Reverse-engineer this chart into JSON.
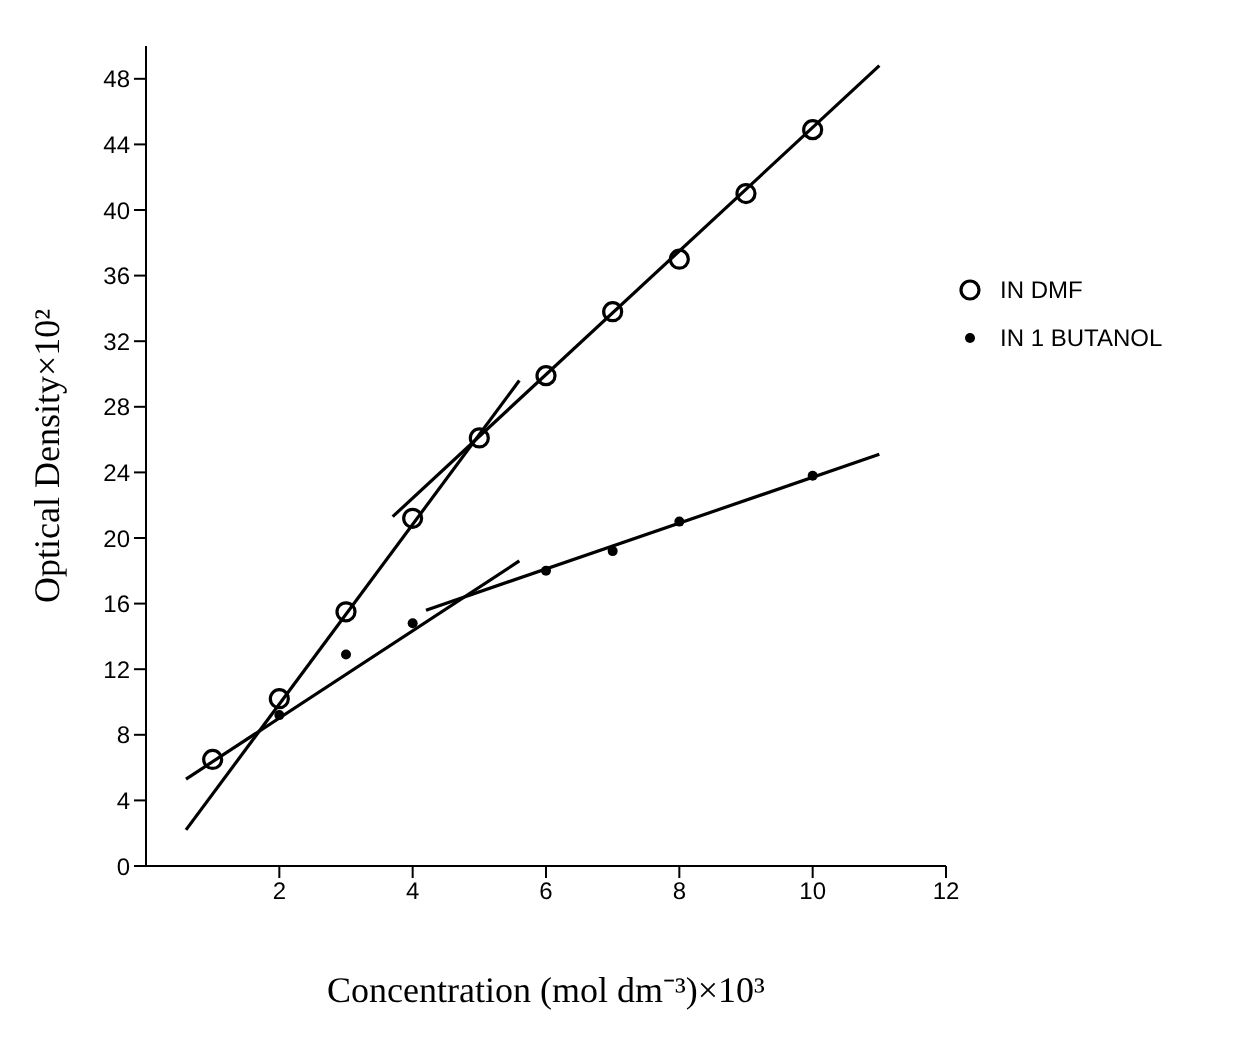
{
  "chart_data": {
    "type": "scatter",
    "xlabel": "Concentration (mol dm⁻³)×10³",
    "ylabel": "Optical Density×10²",
    "xlim": [
      0,
      12
    ],
    "xticks": [
      2,
      4,
      6,
      8,
      10,
      12
    ],
    "ylim": [
      0,
      50
    ],
    "yticks": [
      0,
      4,
      8,
      12,
      16,
      20,
      24,
      28,
      32,
      36,
      40,
      44,
      48
    ],
    "grid": false,
    "legend": "top right",
    "series": [
      {
        "name": "IN DMF",
        "marker": "circle",
        "color": "#000000",
        "x": [
          1,
          2,
          3,
          4,
          5,
          6,
          7,
          8,
          9,
          10
        ],
        "values": [
          6.5,
          10.2,
          15.5,
          21.2,
          26.1,
          29.9,
          33.8,
          37.0,
          41.0,
          44.9
        ]
      },
      {
        "name": "IN 1 BUTANOL",
        "marker": "dot",
        "color": "#000000",
        "x": [
          2,
          3,
          4,
          6,
          7,
          8,
          10
        ],
        "values": [
          9.2,
          12.9,
          14.8,
          18.0,
          19.2,
          21.0,
          23.8
        ]
      },
      {
        "type": "line",
        "marker": "none",
        "color": "#000000",
        "x": [
          0.6,
          5.6
        ],
        "values": [
          2.2,
          29.6
        ]
      },
      {
        "type": "line",
        "marker": "none",
        "color": "#000000",
        "x": [
          3.7,
          11.0
        ],
        "values": [
          21.3,
          48.8
        ]
      },
      {
        "type": "line",
        "marker": "none",
        "color": "#000000",
        "x": [
          0.6,
          5.6
        ],
        "values": [
          5.3,
          18.6
        ]
      },
      {
        "type": "line",
        "marker": "none",
        "color": "#000000",
        "x": [
          4.2,
          11.0
        ],
        "values": [
          15.6,
          25.1
        ]
      }
    ]
  }
}
